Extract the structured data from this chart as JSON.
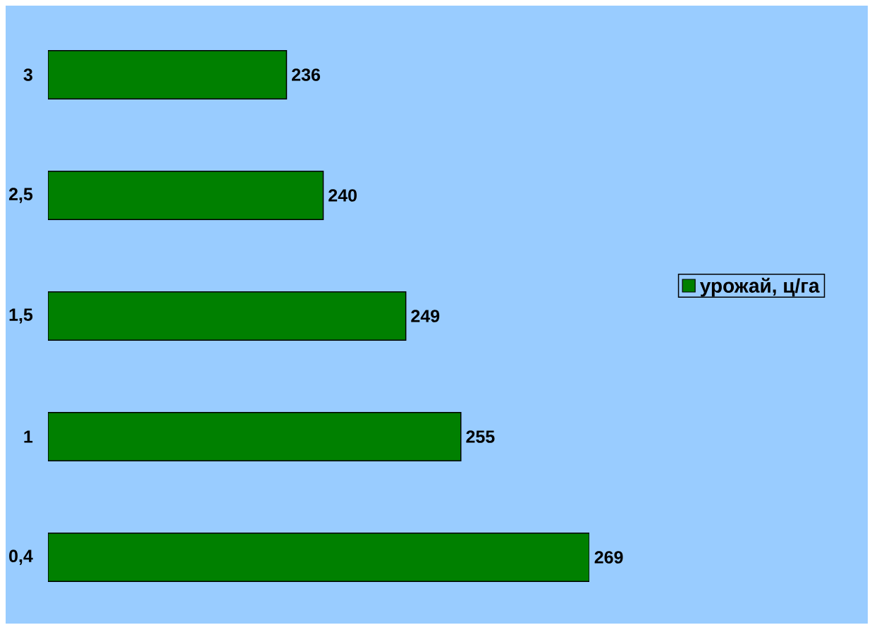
{
  "chart_data": {
    "type": "bar",
    "orientation": "horizontal",
    "categories": [
      "3",
      "2,5",
      "1,5",
      "1",
      "0,4"
    ],
    "series": [
      {
        "name": "урожай, ц/га",
        "color": "#008000",
        "values": [
          236,
          240,
          249,
          255,
          269
        ]
      }
    ],
    "xlim": [
      210,
      269
    ],
    "data_labels": true,
    "tick_labels": "y",
    "legend": "right"
  }
}
